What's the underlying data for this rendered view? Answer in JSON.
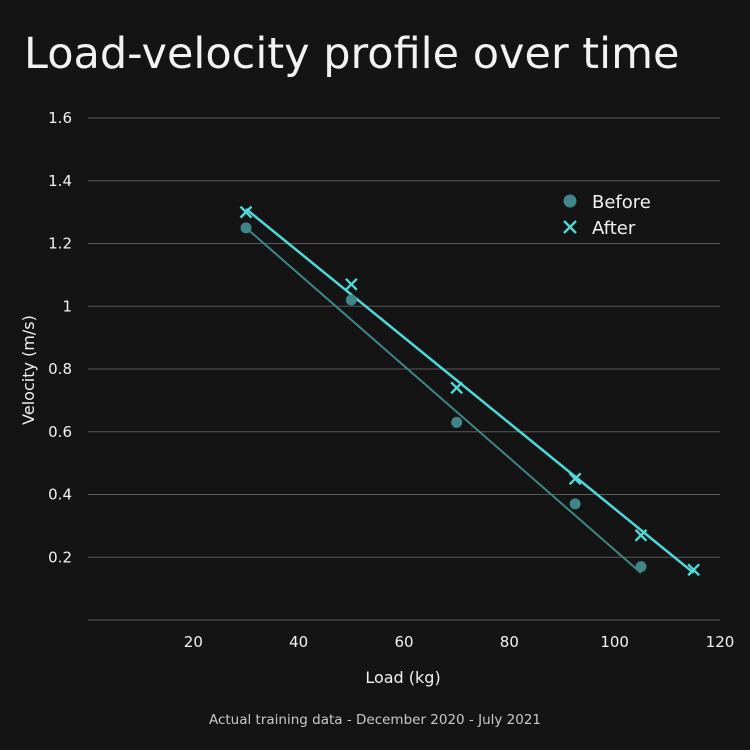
{
  "chart_data": {
    "type": "scatter",
    "title": "Load-velocity profile over time",
    "caption": "Actual training data - December 2020 - July 2021",
    "xlabel": "Load (kg)",
    "ylabel": "Velocity (m/s)",
    "xlim": [
      0,
      120
    ],
    "ylim": [
      0,
      1.6
    ],
    "x_ticks": [
      20,
      40,
      60,
      80,
      100,
      120
    ],
    "y_ticks": [
      0.2,
      0.4,
      0.6,
      0.8,
      1,
      1.2,
      1.4,
      1.6
    ],
    "y_tick_labels": [
      "0.2",
      "0.4",
      "0.6",
      "0.8",
      "1",
      "1.2",
      "1.4",
      "1.6"
    ],
    "grid": "horizontal",
    "legend": "top-right",
    "series": [
      {
        "name": "Before",
        "marker": "circle",
        "color": "#3e8688",
        "points": [
          [
            30,
            1.25
          ],
          [
            50,
            1.02
          ],
          [
            70,
            0.63
          ],
          [
            92.5,
            0.37
          ],
          [
            105,
            0.17
          ]
        ],
        "trendline": [
          [
            30,
            1.25
          ],
          [
            105,
            0.15
          ]
        ]
      },
      {
        "name": "After",
        "marker": "x",
        "color": "#4fd9d9",
        "points": [
          [
            30,
            1.3
          ],
          [
            50,
            1.07
          ],
          [
            70,
            0.74
          ],
          [
            92.5,
            0.45
          ],
          [
            105,
            0.27
          ],
          [
            115,
            0.16
          ]
        ],
        "trendline": [
          [
            30,
            1.31
          ],
          [
            115,
            0.15
          ]
        ]
      }
    ]
  }
}
